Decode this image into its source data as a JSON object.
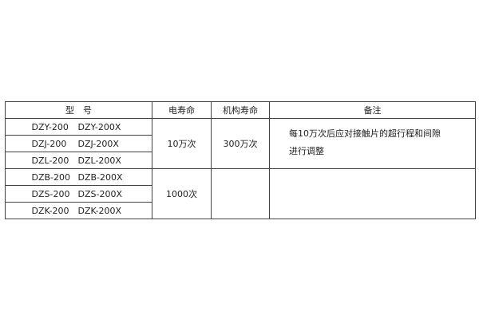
{
  "header": {
    "model": "型　号",
    "electrical_life": "电寿命",
    "mechanical_life": "机构寿命",
    "remarks": "备注"
  },
  "rows": [
    {
      "model_a": "DZY-200",
      "model_b": "DZY-200X"
    },
    {
      "model_a": "DZJ-200",
      "model_b": "DZJ-200X"
    },
    {
      "model_a": "DZL-200",
      "model_b": "DZL-200X"
    },
    {
      "model_a": "DZB-200",
      "model_b": "DZB-200X"
    },
    {
      "model_a": "DZS-200",
      "model_b": "DZS-200X"
    },
    {
      "model_a": "DZK-200",
      "model_b": "DZK-200X"
    }
  ],
  "groups": [
    {
      "electrical_life": "10万次",
      "mechanical_life": "300万次",
      "remarks": [
        "每10万次后应对接触片的超行程和间隙",
        "进行调整"
      ]
    },
    {
      "electrical_life": "1000次",
      "mechanical_life": "",
      "remarks": []
    }
  ]
}
